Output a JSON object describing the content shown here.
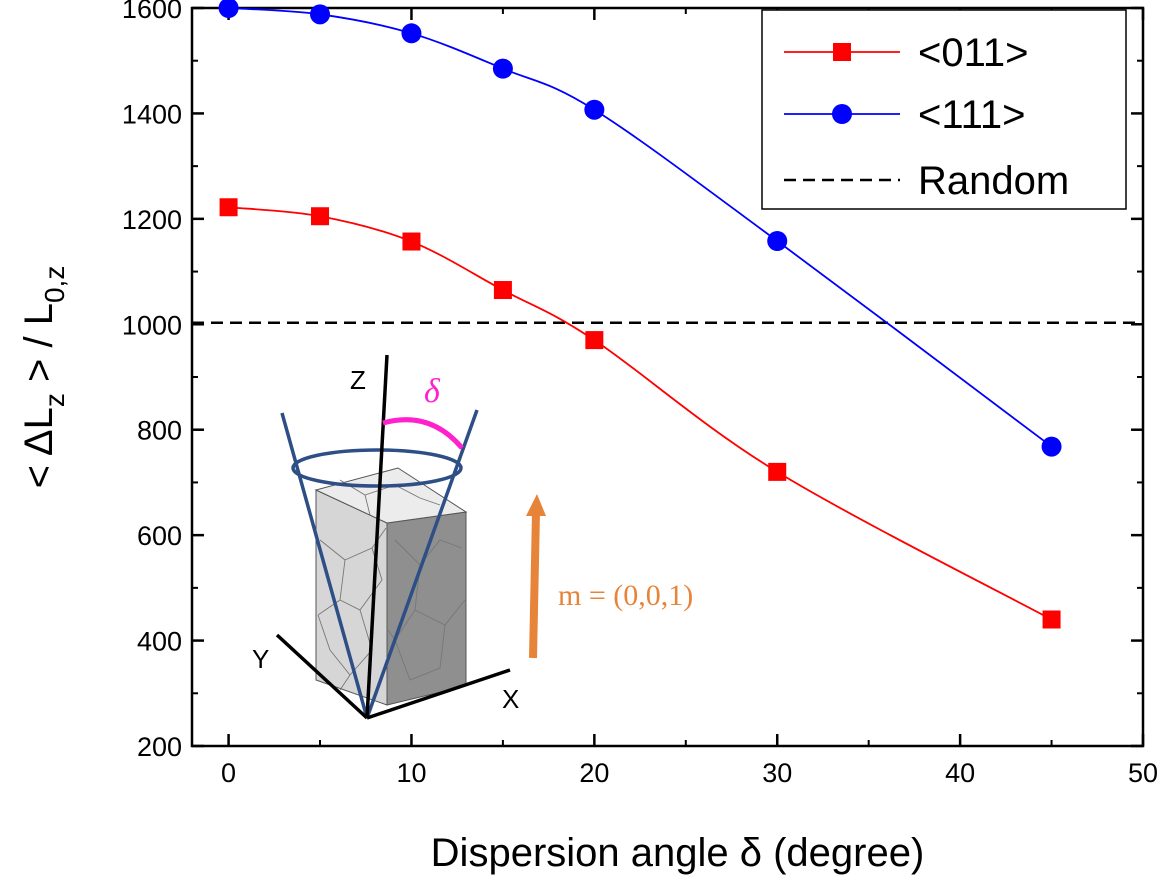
{
  "chart_data": {
    "type": "line",
    "xlabel": "Dispersion angle δ (degree)",
    "ylabel": "< ΔL",
    "ylabel_sub1": "z",
    "ylabel_mid": " > / L",
    "ylabel_sub2": "0,z",
    "xlim": [
      -2,
      50
    ],
    "ylim": [
      200,
      1600
    ],
    "x_ticks": [
      0,
      10,
      20,
      30,
      40,
      50
    ],
    "y_ticks": [
      200,
      400,
      600,
      800,
      1000,
      1200,
      1400,
      1600
    ],
    "grid": false,
    "legend_position": "top-right",
    "series": [
      {
        "name": "<011>",
        "color": "#ff0000",
        "marker": "square",
        "x": [
          0,
          5,
          10,
          15,
          20,
          30,
          45
        ],
        "y": [
          1222,
          1205,
          1157,
          1065,
          970,
          720,
          440
        ]
      },
      {
        "name": "<111>",
        "color": "#0000ff",
        "marker": "circle",
        "x": [
          0,
          5,
          10,
          15,
          20,
          30,
          45
        ],
        "y": [
          1600,
          1588,
          1552,
          1485,
          1407,
          1158,
          768
        ]
      }
    ],
    "reference_lines": [
      {
        "name": "Random",
        "y": 1003,
        "style": "dashed",
        "color": "#000000"
      }
    ],
    "inset": {
      "axis_labels": [
        "Z",
        "Y",
        "X"
      ],
      "angle_label": "δ",
      "vector_label": "m = (0,0,1)",
      "vector_color": "#e8843a",
      "angle_color": "#ff22cc",
      "cone_color": "#2e4f86"
    }
  }
}
